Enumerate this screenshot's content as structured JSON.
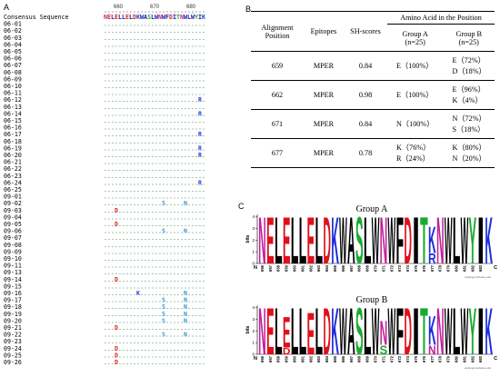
{
  "panels": {
    "a": "A",
    "b": "B",
    "c": "C"
  },
  "alignment": {
    "ruler_labels": [
      "660",
      "670",
      "680"
    ],
    "consensus_label": "Consensus Sequence",
    "consensus_sequence": "NELELLELDKWASLWNWFDITNWLWYIK",
    "rows": [
      {
        "label": "06-01",
        "seq": "............................"
      },
      {
        "label": "06-02",
        "seq": "............................"
      },
      {
        "label": "06-03",
        "seq": "............................"
      },
      {
        "label": "06-04",
        "seq": "............................"
      },
      {
        "label": "06-05",
        "seq": "............................"
      },
      {
        "label": "06-06",
        "seq": "............................"
      },
      {
        "label": "06-07",
        "seq": "............................"
      },
      {
        "label": "06-08",
        "seq": "............................"
      },
      {
        "label": "06-09",
        "seq": "............................"
      },
      {
        "label": "06-10",
        "seq": "............................"
      },
      {
        "label": "06-11",
        "seq": "............................"
      },
      {
        "label": "06-12",
        "seq": "..........................R."
      },
      {
        "label": "06-13",
        "seq": "............................"
      },
      {
        "label": "06-14",
        "seq": "..........................R."
      },
      {
        "label": "06-15",
        "seq": "............................"
      },
      {
        "label": "06-16",
        "seq": "............................"
      },
      {
        "label": "06-17",
        "seq": "..........................R."
      },
      {
        "label": "06-18",
        "seq": "............................"
      },
      {
        "label": "06-19",
        "seq": "..........................R."
      },
      {
        "label": "06-20",
        "seq": "..........................R."
      },
      {
        "label": "06-21",
        "seq": "............................"
      },
      {
        "label": "06-22",
        "seq": "............................"
      },
      {
        "label": "06-23",
        "seq": "............................"
      },
      {
        "label": "06-24",
        "seq": "..........................R."
      },
      {
        "label": "06-25",
        "seq": "............................"
      },
      {
        "label": "09-01",
        "seq": "............................"
      },
      {
        "label": "09-02",
        "seq": "................S.....N....."
      },
      {
        "label": "09-03",
        "seq": "...D........................"
      },
      {
        "label": "09-04",
        "seq": "............................"
      },
      {
        "label": "09-05",
        "seq": "...D........................"
      },
      {
        "label": "09-06",
        "seq": "................S.....N....."
      },
      {
        "label": "09-07",
        "seq": "............................"
      },
      {
        "label": "09-08",
        "seq": "............................"
      },
      {
        "label": "09-09",
        "seq": "............................"
      },
      {
        "label": "09-10",
        "seq": "............................"
      },
      {
        "label": "09-11",
        "seq": "............................"
      },
      {
        "label": "09-13",
        "seq": "............................"
      },
      {
        "label": "09-14",
        "seq": "...D........................"
      },
      {
        "label": "09-15",
        "seq": "............................"
      },
      {
        "label": "09-16",
        "seq": ".........K............N....."
      },
      {
        "label": "09-17",
        "seq": "................S.....N....."
      },
      {
        "label": "09-18",
        "seq": "................S.....N....."
      },
      {
        "label": "09-19",
        "seq": "................S.....N....."
      },
      {
        "label": "09-20",
        "seq": "................S.....N....."
      },
      {
        "label": "09-21",
        "seq": "...D........................"
      },
      {
        "label": "09-22",
        "seq": "................S.....N....."
      },
      {
        "label": "09-23",
        "seq": "............................"
      },
      {
        "label": "09-24",
        "seq": "...D........................"
      },
      {
        "label": "09-25",
        "seq": "...D........................"
      },
      {
        "label": "09-26",
        "seq": "...D........................"
      }
    ],
    "colors": {
      "consensus": "#1a1aa0",
      "dot": "#1d7a3a",
      "R": "#1f3fd6",
      "K": "#1f3fd6",
      "D": "#d81e1e",
      "S": "#3a96c8",
      "N": "#3a96c8"
    }
  },
  "table": {
    "headers": {
      "position": "Alignment Position",
      "epitopes": "Epitopes",
      "sh_scores": "SH-scores",
      "aa_header": "Amino Acid in the Position",
      "group_a": "Group A",
      "group_a_n": "(n=25)",
      "group_b": "Group B",
      "group_b_n": "(n=25)"
    },
    "rows": [
      {
        "position": "659",
        "epitope": "MPER",
        "sh": "0.84",
        "group_a": [
          "E（100%）"
        ],
        "group_b": [
          "E（72%）",
          "D（18%）"
        ]
      },
      {
        "position": "662",
        "epitope": "MPER",
        "sh": "0.98",
        "group_a": [
          "E（100%）"
        ],
        "group_b": [
          "E（96%）",
          "K（4%）"
        ]
      },
      {
        "position": "671",
        "epitope": "MPER",
        "sh": "0.84",
        "group_a": [
          "N（100%）"
        ],
        "group_b": [
          "N（72%）",
          "S（18%）"
        ]
      },
      {
        "position": "677",
        "epitope": "MPER",
        "sh": "0.78",
        "group_a": [
          "K（76%）",
          "R（24%）"
        ],
        "group_b": [
          "K（80%）",
          "N（20%）"
        ]
      }
    ]
  },
  "logos": [
    {
      "title": "Group A",
      "ylabel": "bits",
      "yticks": [
        "4",
        "3",
        "2",
        "1",
        "0"
      ],
      "n_terminus": "N",
      "c_terminus": "C",
      "footer": "weblogo.berkeley.edu",
      "positions": [
        "656",
        "657",
        "658",
        "659",
        "660",
        "661",
        "662",
        "663",
        "664",
        "665",
        "666",
        "667",
        "668",
        "669",
        "670",
        "671",
        "672",
        "673",
        "674",
        "675",
        "676",
        "677",
        "678",
        "679",
        "680",
        "681",
        "682",
        "683"
      ],
      "letters": [
        [
          {
            "aa": "N",
            "h": 4.2
          }
        ],
        [
          {
            "aa": "E",
            "h": 4.2
          }
        ],
        [
          {
            "aa": "L",
            "h": 4.2
          }
        ],
        [
          {
            "aa": "E",
            "h": 4.2
          }
        ],
        [
          {
            "aa": "L",
            "h": 4.2
          }
        ],
        [
          {
            "aa": "L",
            "h": 4.2
          }
        ],
        [
          {
            "aa": "E",
            "h": 4.2
          }
        ],
        [
          {
            "aa": "L",
            "h": 4.2
          }
        ],
        [
          {
            "aa": "D",
            "h": 4.2
          }
        ],
        [
          {
            "aa": "K",
            "h": 4.2
          }
        ],
        [
          {
            "aa": "W",
            "h": 4.2
          }
        ],
        [
          {
            "aa": "A",
            "h": 4.2
          }
        ],
        [
          {
            "aa": "S",
            "h": 4.2
          }
        ],
        [
          {
            "aa": "L",
            "h": 4.2
          }
        ],
        [
          {
            "aa": "W",
            "h": 4.2
          }
        ],
        [
          {
            "aa": "N",
            "h": 4.2
          }
        ],
        [
          {
            "aa": "W",
            "h": 4.2
          }
        ],
        [
          {
            "aa": "F",
            "h": 4.2
          }
        ],
        [
          {
            "aa": "D",
            "h": 4.2
          }
        ],
        [
          {
            "aa": "I",
            "h": 4.2
          }
        ],
        [
          {
            "aa": "T",
            "h": 4.2
          }
        ],
        [
          {
            "aa": "R",
            "h": 0.9
          },
          {
            "aa": "K",
            "h": 2.4
          }
        ],
        [
          {
            "aa": "N",
            "h": 4.2
          }
        ],
        [
          {
            "aa": "W",
            "h": 4.2
          }
        ],
        [
          {
            "aa": "L",
            "h": 4.2
          }
        ],
        [
          {
            "aa": "W",
            "h": 4.2
          }
        ],
        [
          {
            "aa": "Y",
            "h": 4.2
          }
        ],
        [
          {
            "aa": "I",
            "h": 4.2
          }
        ],
        [
          {
            "aa": "K",
            "h": 4.2
          }
        ]
      ]
    },
    {
      "title": "Group B",
      "ylabel": "bits",
      "yticks": [
        "4",
        "3",
        "2",
        "1",
        "0"
      ],
      "n_terminus": "N",
      "c_terminus": "C",
      "footer": "weblogo.berkeley.edu",
      "positions": [
        "656",
        "657",
        "658",
        "659",
        "660",
        "661",
        "662",
        "663",
        "664",
        "665",
        "666",
        "667",
        "668",
        "669",
        "670",
        "671",
        "672",
        "673",
        "674",
        "675",
        "676",
        "677",
        "678",
        "679",
        "680",
        "681",
        "682",
        "683"
      ],
      "letters": [
        [
          {
            "aa": "N",
            "h": 4.2
          }
        ],
        [
          {
            "aa": "E",
            "h": 4.2
          }
        ],
        [
          {
            "aa": "L",
            "h": 4.2
          }
        ],
        [
          {
            "aa": "D",
            "h": 0.6
          },
          {
            "aa": "E",
            "h": 2.8
          }
        ],
        [
          {
            "aa": "L",
            "h": 4.2
          }
        ],
        [
          {
            "aa": "L",
            "h": 4.2
          }
        ],
        [
          {
            "aa": "E",
            "h": 3.8
          }
        ],
        [
          {
            "aa": "L",
            "h": 4.2
          }
        ],
        [
          {
            "aa": "D",
            "h": 4.2
          }
        ],
        [
          {
            "aa": "K",
            "h": 4.2
          }
        ],
        [
          {
            "aa": "W",
            "h": 4.2
          }
        ],
        [
          {
            "aa": "A",
            "h": 4.2
          }
        ],
        [
          {
            "aa": "S",
            "h": 4.2
          }
        ],
        [
          {
            "aa": "L",
            "h": 4.2
          }
        ],
        [
          {
            "aa": "W",
            "h": 4.2
          }
        ],
        [
          {
            "aa": "S",
            "h": 0.8
          },
          {
            "aa": "N",
            "h": 2.2
          }
        ],
        [
          {
            "aa": "W",
            "h": 4.2
          }
        ],
        [
          {
            "aa": "F",
            "h": 4.2
          }
        ],
        [
          {
            "aa": "D",
            "h": 4.2
          }
        ],
        [
          {
            "aa": "I",
            "h": 4.2
          }
        ],
        [
          {
            "aa": "T",
            "h": 4.2
          }
        ],
        [
          {
            "aa": "N",
            "h": 0.8
          },
          {
            "aa": "K",
            "h": 2.6
          }
        ],
        [
          {
            "aa": "N",
            "h": 4.2
          }
        ],
        [
          {
            "aa": "W",
            "h": 4.2
          }
        ],
        [
          {
            "aa": "L",
            "h": 4.2
          }
        ],
        [
          {
            "aa": "W",
            "h": 4.2
          }
        ],
        [
          {
            "aa": "Y",
            "h": 4.2
          }
        ],
        [
          {
            "aa": "I",
            "h": 4.2
          }
        ],
        [
          {
            "aa": "K",
            "h": 4.2
          }
        ]
      ]
    }
  ],
  "logo_colors": {
    "N": "#c0209c",
    "E": "#e0101a",
    "L": "#000000",
    "D": "#e0101a",
    "K": "#1a2ee0",
    "W": "#000000",
    "A": "#000000",
    "S": "#1aaa30",
    "F": "#000000",
    "I": "#000000",
    "T": "#1aaa30",
    "R": "#1a2ee0",
    "Y": "#1aaa30"
  }
}
